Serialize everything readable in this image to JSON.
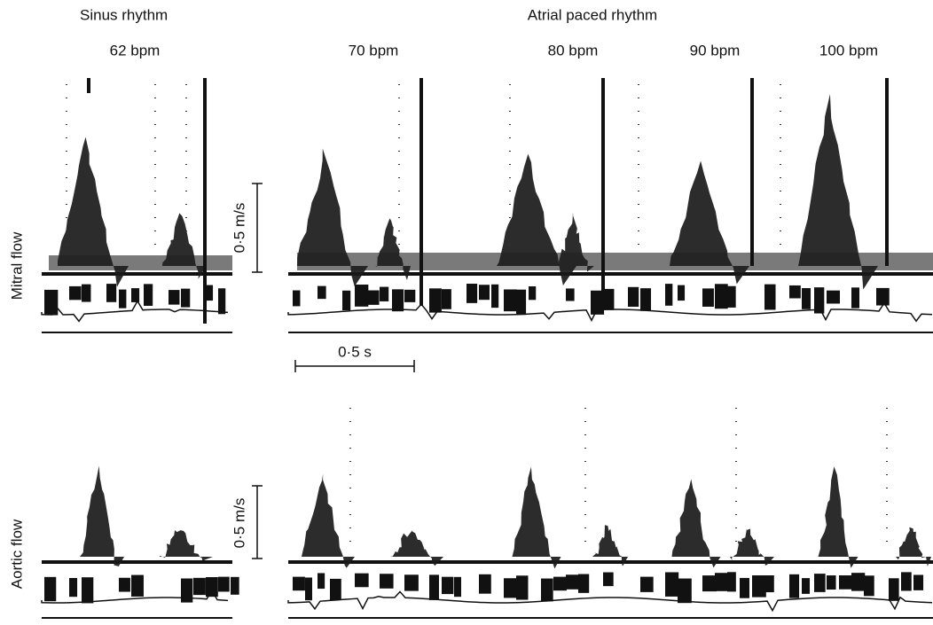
{
  "header": {
    "left": "Sinus rhythm",
    "right": "Atrial paced rhythm"
  },
  "rates": [
    "62 bpm",
    "70 bpm",
    "80 bpm",
    "90 bpm",
    "100 bpm"
  ],
  "panels": [
    {
      "label": "Mitral flow",
      "scale": "0·5 m/s"
    },
    {
      "label": "Aortic flow",
      "scale": "0·5 m/s"
    }
  ],
  "time_scale": "0·5 s"
}
